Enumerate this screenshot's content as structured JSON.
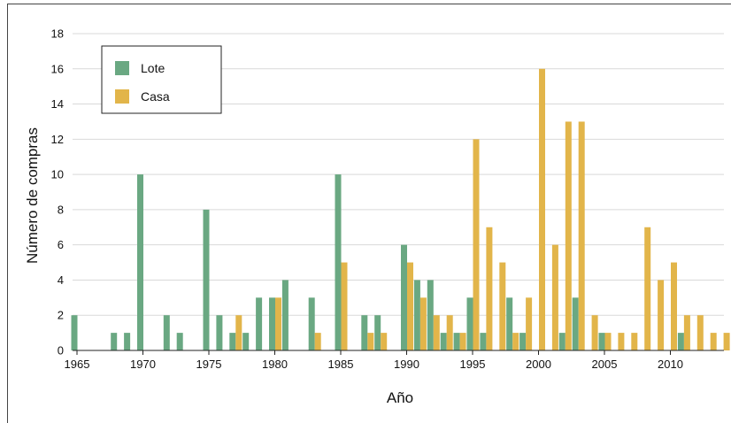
{
  "chart_data": {
    "type": "bar",
    "title": "",
    "xlabel": "Año",
    "ylabel": "Número de compras",
    "xlim": [
      1965,
      2014
    ],
    "ylim": [
      0,
      18
    ],
    "x_ticks": [
      "1965",
      "1970",
      "1975",
      "1980",
      "1985",
      "1990",
      "1995",
      "2000",
      "2005",
      "2010"
    ],
    "y_ticks": [
      "0",
      "2",
      "4",
      "6",
      "8",
      "10",
      "12",
      "14",
      "16",
      "18"
    ],
    "grid": "horizontal",
    "legend_position": "top-left",
    "colors": {
      "Lote": "#6aa882",
      "Casa": "#e2b54a"
    },
    "x": [
      1965,
      1966,
      1967,
      1968,
      1969,
      1970,
      1971,
      1972,
      1973,
      1974,
      1975,
      1976,
      1977,
      1978,
      1979,
      1980,
      1981,
      1982,
      1983,
      1984,
      1985,
      1986,
      1987,
      1988,
      1989,
      1990,
      1991,
      1992,
      1993,
      1994,
      1995,
      1996,
      1997,
      1998,
      1999,
      2000,
      2001,
      2002,
      2003,
      2004,
      2005,
      2006,
      2007,
      2008,
      2009,
      2010,
      2011,
      2012,
      2013,
      2014
    ],
    "series": [
      {
        "name": "Lote",
        "values": [
          2,
          0,
          0,
          1,
          1,
          10,
          0,
          2,
          1,
          0,
          8,
          2,
          1,
          1,
          3,
          3,
          4,
          0,
          3,
          0,
          10,
          0,
          2,
          2,
          0,
          6,
          4,
          4,
          1,
          1,
          3,
          1,
          0,
          3,
          1,
          0,
          0,
          1,
          3,
          0,
          1,
          0,
          0,
          0,
          0,
          0,
          1,
          0,
          0,
          0
        ]
      },
      {
        "name": "Casa",
        "values": [
          0,
          0,
          0,
          0,
          0,
          0,
          0,
          0,
          0,
          0,
          0,
          0,
          2,
          0,
          0,
          3,
          0,
          0,
          1,
          0,
          5,
          0,
          1,
          1,
          0,
          5,
          3,
          2,
          2,
          1,
          12,
          7,
          5,
          1,
          3,
          16,
          6,
          13,
          13,
          2,
          1,
          1,
          1,
          7,
          4,
          5,
          2,
          2,
          1,
          1
        ]
      }
    ]
  }
}
